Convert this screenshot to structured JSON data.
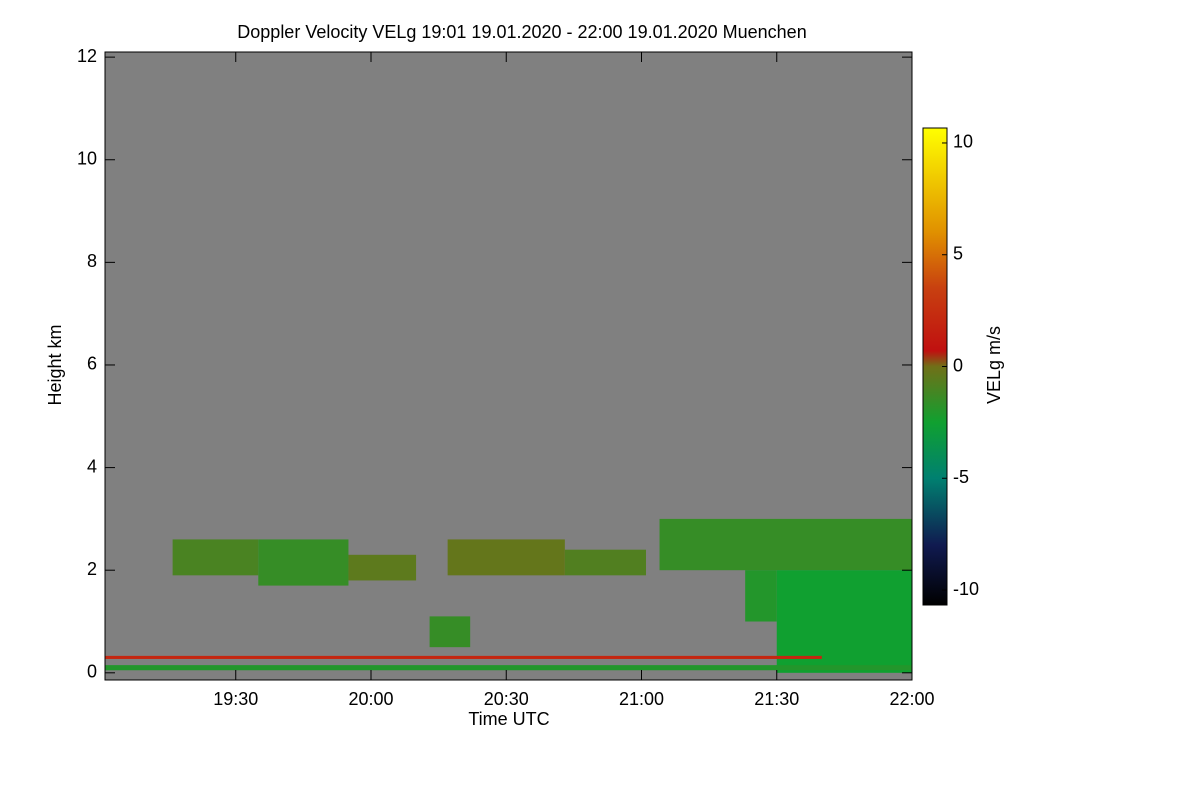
{
  "chart_data": {
    "type": "heatmap",
    "title": "Doppler Velocity VELg   19:01 19.01.2020 - 22:00 19.01.2020 Muenchen",
    "x_label": "Time UTC",
    "y_label": "Height km",
    "colorbar_label": "VELg m/s",
    "xlim": [
      1141,
      1320
    ],
    "xticks": [
      {
        "value": 1170,
        "label": "19:30"
      },
      {
        "value": 1200,
        "label": "20:00"
      },
      {
        "value": 1230,
        "label": "20:30"
      },
      {
        "value": 1260,
        "label": "21:00"
      },
      {
        "value": 1290,
        "label": "21:30"
      },
      {
        "value": 1320,
        "label": "22:00"
      }
    ],
    "ylim": [
      -0.14,
      12.1
    ],
    "yticks": [
      0,
      2,
      4,
      6,
      8,
      10,
      12
    ],
    "zlim": [
      -10.67,
      10.67
    ],
    "zticks": [
      -10,
      -5,
      0,
      5,
      10
    ],
    "background": "#808080",
    "colorscale": [
      {
        "value": -10.67,
        "color": "#000000"
      },
      {
        "value": -8,
        "color": "#101a50"
      },
      {
        "value": -5,
        "color": "#008070"
      },
      {
        "value": -2.5,
        "color": "#10a030"
      },
      {
        "value": 0,
        "color": "#707018"
      },
      {
        "value": 0.7,
        "color": "#c01010"
      },
      {
        "value": 3.5,
        "color": "#c84010"
      },
      {
        "value": 6,
        "color": "#e09000"
      },
      {
        "value": 10.67,
        "color": "#ffff00"
      }
    ],
    "cells": [
      [
        1156,
        1175,
        1.9,
        2.6,
        -1
      ],
      [
        1175,
        1195,
        1.7,
        2.6,
        -1.5
      ],
      [
        1195,
        1210,
        1.8,
        2.3,
        -0.5
      ],
      [
        1217,
        1243,
        1.9,
        2.6,
        -0.3
      ],
      [
        1243,
        1261,
        1.9,
        2.4,
        -0.8
      ],
      [
        1264,
        1320,
        2.0,
        3.0,
        -1.5
      ],
      [
        1283,
        1290,
        1.0,
        2.0,
        -2
      ],
      [
        1290,
        1320,
        0.0,
        2.0,
        -2.5
      ],
      [
        1213,
        1222,
        0.5,
        1.1,
        -1.5
      ],
      [
        1141,
        1320,
        0.05,
        0.15,
        -2
      ],
      [
        1141,
        1300,
        0.27,
        0.33,
        2
      ]
    ]
  }
}
